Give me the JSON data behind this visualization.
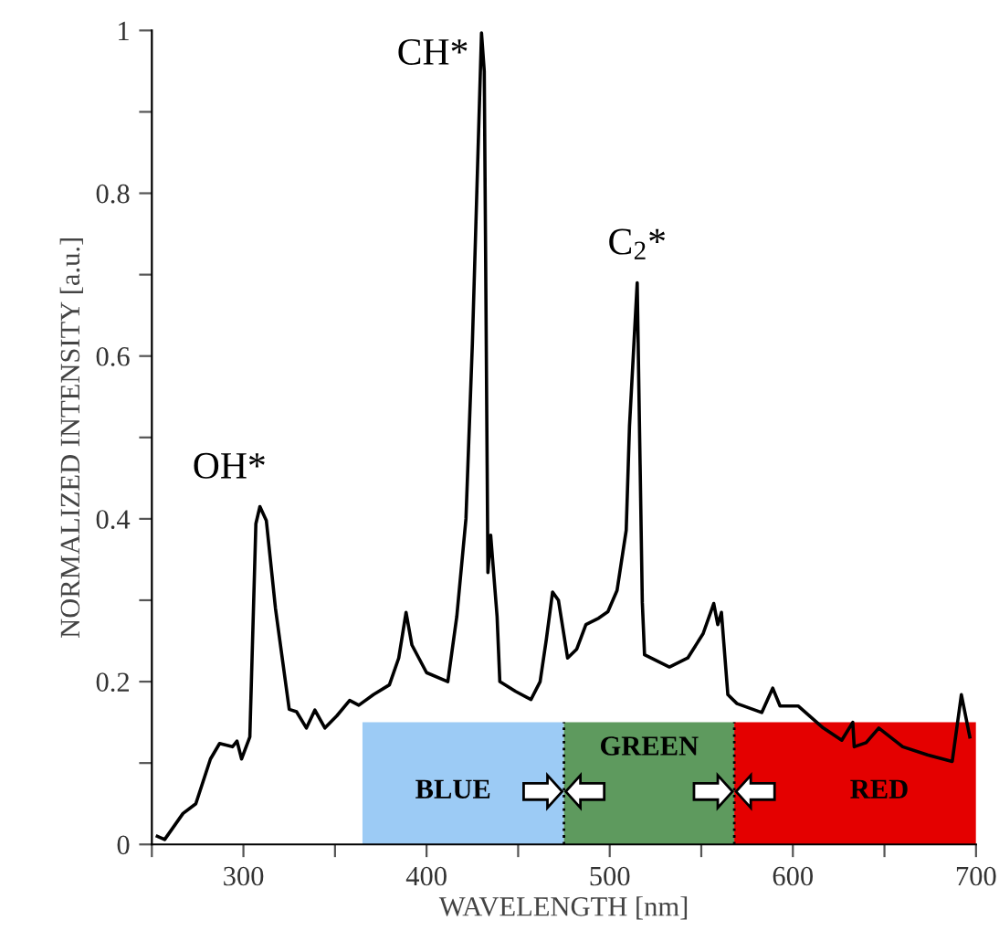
{
  "chart_data": {
    "type": "line",
    "xlabel": "WAVELENGTH [nm]",
    "ylabel": "NORMALIZED INTENSITY [a.u.]",
    "x": [
      253,
      257,
      267,
      274,
      282,
      287,
      294,
      296.5,
      299,
      303.5,
      306.8,
      309,
      312.5,
      317.5,
      325,
      329,
      334.4,
      339,
      344.5,
      351,
      358,
      363,
      371,
      379.7,
      384.8,
      388.8,
      392,
      400,
      411.6,
      416.5,
      421.5,
      425,
      430,
      431.5,
      433.5,
      435,
      438.5,
      440,
      448.6,
      457,
      462,
      465.4,
      468.8,
      472,
      477,
      482,
      487,
      494,
      499,
      504,
      509,
      510.8,
      515,
      517.8,
      519,
      532.6,
      542.6,
      551,
      556.8,
      559,
      561,
      564.5,
      569.5,
      583,
      589,
      593,
      603,
      616.6,
      626.7,
      632.7,
      633.5,
      640,
      646.9,
      660,
      673.5,
      687,
      692,
      696.6
    ],
    "series": [
      {
        "color": "#000000",
        "values": [
          0.01,
          0.006,
          0.038,
          0.05,
          0.105,
          0.124,
          0.12,
          0.127,
          0.105,
          0.132,
          0.394,
          0.415,
          0.398,
          0.29,
          0.166,
          0.163,
          0.143,
          0.165,
          0.143,
          0.158,
          0.177,
          0.171,
          0.184,
          0.196,
          0.229,
          0.285,
          0.245,
          0.211,
          0.2,
          0.28,
          0.4,
          0.615,
          0.997,
          0.95,
          0.334,
          0.38,
          0.28,
          0.2,
          0.188,
          0.178,
          0.2,
          0.252,
          0.31,
          0.3,
          0.229,
          0.24,
          0.27,
          0.278,
          0.286,
          0.312,
          0.386,
          0.514,
          0.69,
          0.297,
          0.233,
          0.218,
          0.229,
          0.259,
          0.296,
          0.27,
          0.285,
          0.184,
          0.173,
          0.162,
          0.192,
          0.17,
          0.17,
          0.143,
          0.128,
          0.15,
          0.12,
          0.125,
          0.143,
          0.12,
          0.11,
          0.102,
          0.184,
          0.132
        ]
      }
    ],
    "xlim": [
      250,
      700
    ],
    "ylim": [
      0,
      1
    ],
    "xticks": [
      {
        "value": 250,
        "label": null
      },
      300,
      {
        "value": 350,
        "label": null
      },
      400,
      {
        "value": 450,
        "label": null
      },
      500,
      {
        "value": 550,
        "label": null
      },
      600,
      {
        "value": 650,
        "label": null
      },
      700
    ],
    "yticks": [
      0,
      {
        "value": 0.1,
        "label": null
      },
      0.2,
      {
        "value": 0.3,
        "label": null
      },
      0.4,
      {
        "value": 0.5,
        "label": null
      },
      0.6,
      {
        "value": 0.7,
        "label": null
      },
      0.8,
      {
        "value": 0.9,
        "label": null
      },
      1
    ],
    "bands": [
      {
        "axis": "x",
        "from": 365,
        "to": 475,
        "label": "BLUE",
        "color": "#9ccbf5"
      },
      {
        "axis": "x",
        "from": 475,
        "to": 568,
        "label": "GREEN",
        "color": "#5e9a5e"
      },
      {
        "axis": "x",
        "from": 568,
        "to": 700,
        "label": "RED",
        "color": "#e40000"
      }
    ],
    "ref_lines": [
      {
        "axis": "x",
        "value": 475,
        "line_style": "dotted",
        "color": "#000000"
      },
      {
        "axis": "x",
        "value": 568,
        "line_style": "dotted",
        "color": "#000000"
      }
    ],
    "annotations": [
      {
        "text": "OH*",
        "x": 309,
        "y": 0.415
      },
      {
        "text": "CH*",
        "x": 430,
        "y": 0.997
      },
      {
        "text": "C$_{2}$*",
        "x": 515,
        "y": 0.69
      }
    ],
    "grid": false,
    "legend": false,
    "line_style": "solid",
    "marker": "none"
  }
}
